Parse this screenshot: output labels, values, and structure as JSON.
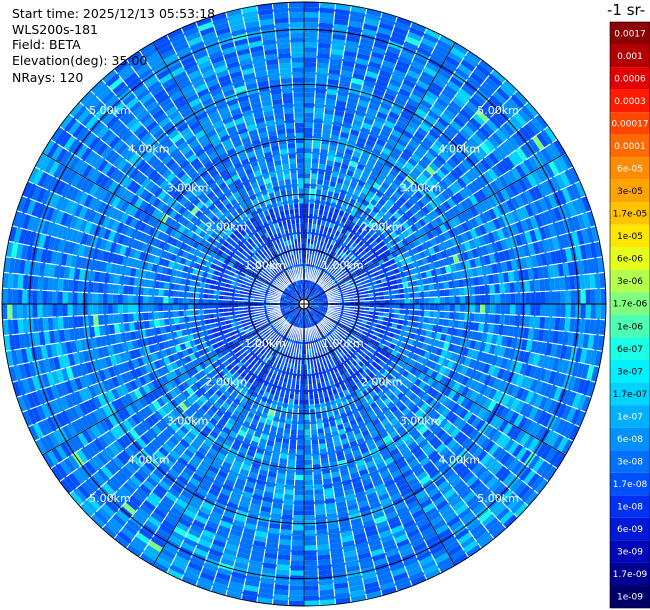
{
  "info": {
    "start_time": "Start time: 2025/12/13 05:53:18",
    "instrument": "WLS200s-181",
    "field": "Field: BETA",
    "elevation": "Elevation(deg): 35.00",
    "nrays": "NRays: 120"
  },
  "colorbar": {
    "title_fragment": "-1 sr-",
    "levels": [
      {
        "label": "0.0017",
        "color": "#8b0000"
      },
      {
        "label": "0.001",
        "color": "#b30000"
      },
      {
        "label": "0.0006",
        "color": "#e00000"
      },
      {
        "label": "0.0003",
        "color": "#ff1a00"
      },
      {
        "label": "0.00017",
        "color": "#ff4500"
      },
      {
        "label": "0.0001",
        "color": "#ff6a00"
      },
      {
        "label": "6e-05",
        "color": "#ff8c00"
      },
      {
        "label": "3e-05",
        "color": "#ffa500"
      },
      {
        "label": "1.7e-05",
        "color": "#ffc400"
      },
      {
        "label": "1e-05",
        "color": "#ffe600"
      },
      {
        "label": "6e-06",
        "color": "#e6ff1a"
      },
      {
        "label": "3e-06",
        "color": "#b3ff4d"
      },
      {
        "label": "1.7e-06",
        "color": "#80ff80"
      },
      {
        "label": "1e-06",
        "color": "#4dffb3"
      },
      {
        "label": "6e-07",
        "color": "#1affe6"
      },
      {
        "label": "3e-07",
        "color": "#00f0ff"
      },
      {
        "label": "1.7e-07",
        "color": "#00d4ff"
      },
      {
        "label": "1e-07",
        "color": "#00b0ff"
      },
      {
        "label": "6e-08",
        "color": "#0090ff"
      },
      {
        "label": "3e-08",
        "color": "#0070ff"
      },
      {
        "label": "1.7e-08",
        "color": "#0050ff"
      },
      {
        "label": "1e-08",
        "color": "#0030f0"
      },
      {
        "label": "6e-09",
        "color": "#0018d8"
      },
      {
        "label": "3e-09",
        "color": "#0008b8"
      },
      {
        "label": "1.7e-09",
        "color": "#000090"
      },
      {
        "label": "1e-09",
        "color": "#000066"
      }
    ]
  },
  "chart_data": {
    "type": "heatmap",
    "projection": "polar (PPI)",
    "field": "BETA",
    "nrays": 120,
    "elevation_deg": 35.0,
    "range_rings_km": [
      1,
      2,
      3,
      4,
      5
    ],
    "ring_labels": [
      "1.00km",
      "2.00km",
      "3.00km",
      "4.00km",
      "5.00km"
    ],
    "max_range_km": 5.5,
    "color_scale": "log",
    "value_range": [
      1e-09,
      0.0017
    ],
    "typical_value": 1.7e-08,
    "notes": "Mostly medium-blue returns (~1e-08 to 1e-07) across all azimuths, brighter cyan speckles in outer ranges, denser darker blue near the center."
  }
}
